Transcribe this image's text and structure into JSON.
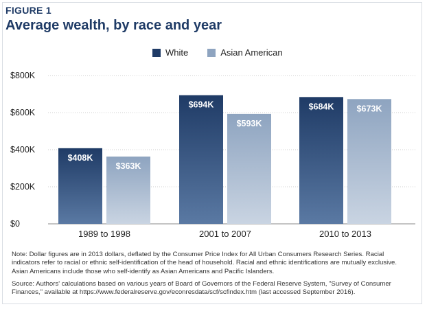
{
  "figure_label": "FIGURE 1",
  "note": "Note: Dollar figures are in 2013 dollars, deflated by the Consumer Price Index for All Urban Consumers Research Series. Racial indicators refer to racial or ethnic self-identification of the head of household. Racial and ethnic identifications are mutually exclusive. Asian Americans include those who self-identify as Asian Americans and Pacific Islanders.",
  "source": "Source: Authors' calculations based on various years of Board of Governors of the Federal Reserve System, \"Survey of Consumer Finances,\" available at https://www.federalreserve.gov/econresdata/scf/scfindex.htm (last accessed September 2016).",
  "colors": {
    "white_top": "#1f3b66",
    "white_bottom": "#5a79a3",
    "asian_top": "#8ea4c0",
    "asian_bottom": "#c9d4e2",
    "title": "#1f3b66",
    "grid": "#cfcfcf"
  },
  "chart_data": {
    "type": "bar",
    "title": "Average wealth, by race and year",
    "categories": [
      "1989 to 1998",
      "2001 to 2007",
      "2010 to 2013"
    ],
    "series": [
      {
        "name": "White",
        "values": [
          408,
          694,
          684
        ],
        "labels": [
          "$408K",
          "$694K",
          "$684K"
        ]
      },
      {
        "name": "Asian American",
        "values": [
          363,
          593,
          673
        ],
        "labels": [
          "$363K",
          "$593K",
          "$673K"
        ]
      }
    ],
    "ylim": [
      0,
      800
    ],
    "yticks": [
      0,
      200,
      400,
      600,
      800
    ],
    "ytick_labels": [
      "$0",
      "$200K",
      "$400K",
      "$600K",
      "$800K"
    ],
    "grid": true,
    "legend": "top-center"
  }
}
